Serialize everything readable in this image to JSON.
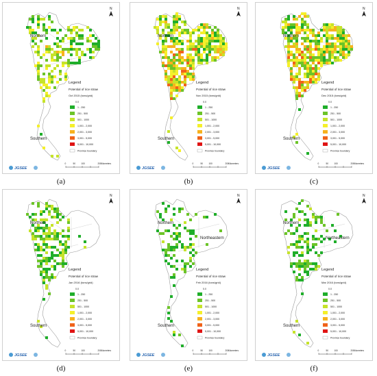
{
  "panels": [
    {
      "id": "a",
      "caption": "(a)",
      "month": "Oct 2015 (tons/grid)",
      "labels": {
        "north": "Northern",
        "northeast": "",
        "south": "Southern"
      },
      "intensity": 0.55
    },
    {
      "id": "b",
      "caption": "(b)",
      "month": "Nov 2015 (tons/grid)",
      "labels": {
        "north": "Northern",
        "northeast": "",
        "south": "Southern"
      },
      "intensity": 0.85
    },
    {
      "id": "c",
      "caption": "(c)",
      "month": "Dec 2015 (tons/grid)",
      "labels": {
        "north": "Northern",
        "northeast": "",
        "south": "Southern"
      },
      "intensity": 0.9
    },
    {
      "id": "d",
      "caption": "(d)",
      "month": "Jan 2016 (tons/grid)",
      "labels": {
        "north": "Northern",
        "northeast": "",
        "south": "Southern"
      },
      "intensity": 0.5
    },
    {
      "id": "e",
      "caption": "(e)",
      "month": "Feb 2016 (tons/grid)",
      "labels": {
        "north": "Northern",
        "northeast": "Northeastern",
        "south": "Southern"
      },
      "intensity": 0.3
    },
    {
      "id": "f",
      "caption": "(f)",
      "month": "Mar 2016 (tons/grid)",
      "labels": {
        "north": "Northern",
        "northeast": "Northeastern",
        "south": "Southern"
      },
      "intensity": 0.35
    }
  ],
  "legend": {
    "title": "Legend",
    "subtitle": "Potential of rice straw",
    "zero": "0.0",
    "classes": [
      {
        "label": "1 - 250",
        "color": "#1fae2a"
      },
      {
        "label": "251 - 500",
        "color": "#6cc428"
      },
      {
        "label": "501 - 1000",
        "color": "#c6e32a"
      },
      {
        "label": "1,001 - 2,000",
        "color": "#f5f02a"
      },
      {
        "label": "2,001 - 3,000",
        "color": "#f7b21e"
      },
      {
        "label": "3,001 - 5,000",
        "color": "#f0631a"
      },
      {
        "label": "5,001 - 10,000",
        "color": "#e01414"
      }
    ],
    "boundary": "Province boundary"
  },
  "north_arrow": "N",
  "scale_bar": {
    "ticks": [
      "0",
      "50",
      "100",
      "",
      "200"
    ],
    "unit": "Kilometers"
  },
  "logo": "JGSEE"
}
